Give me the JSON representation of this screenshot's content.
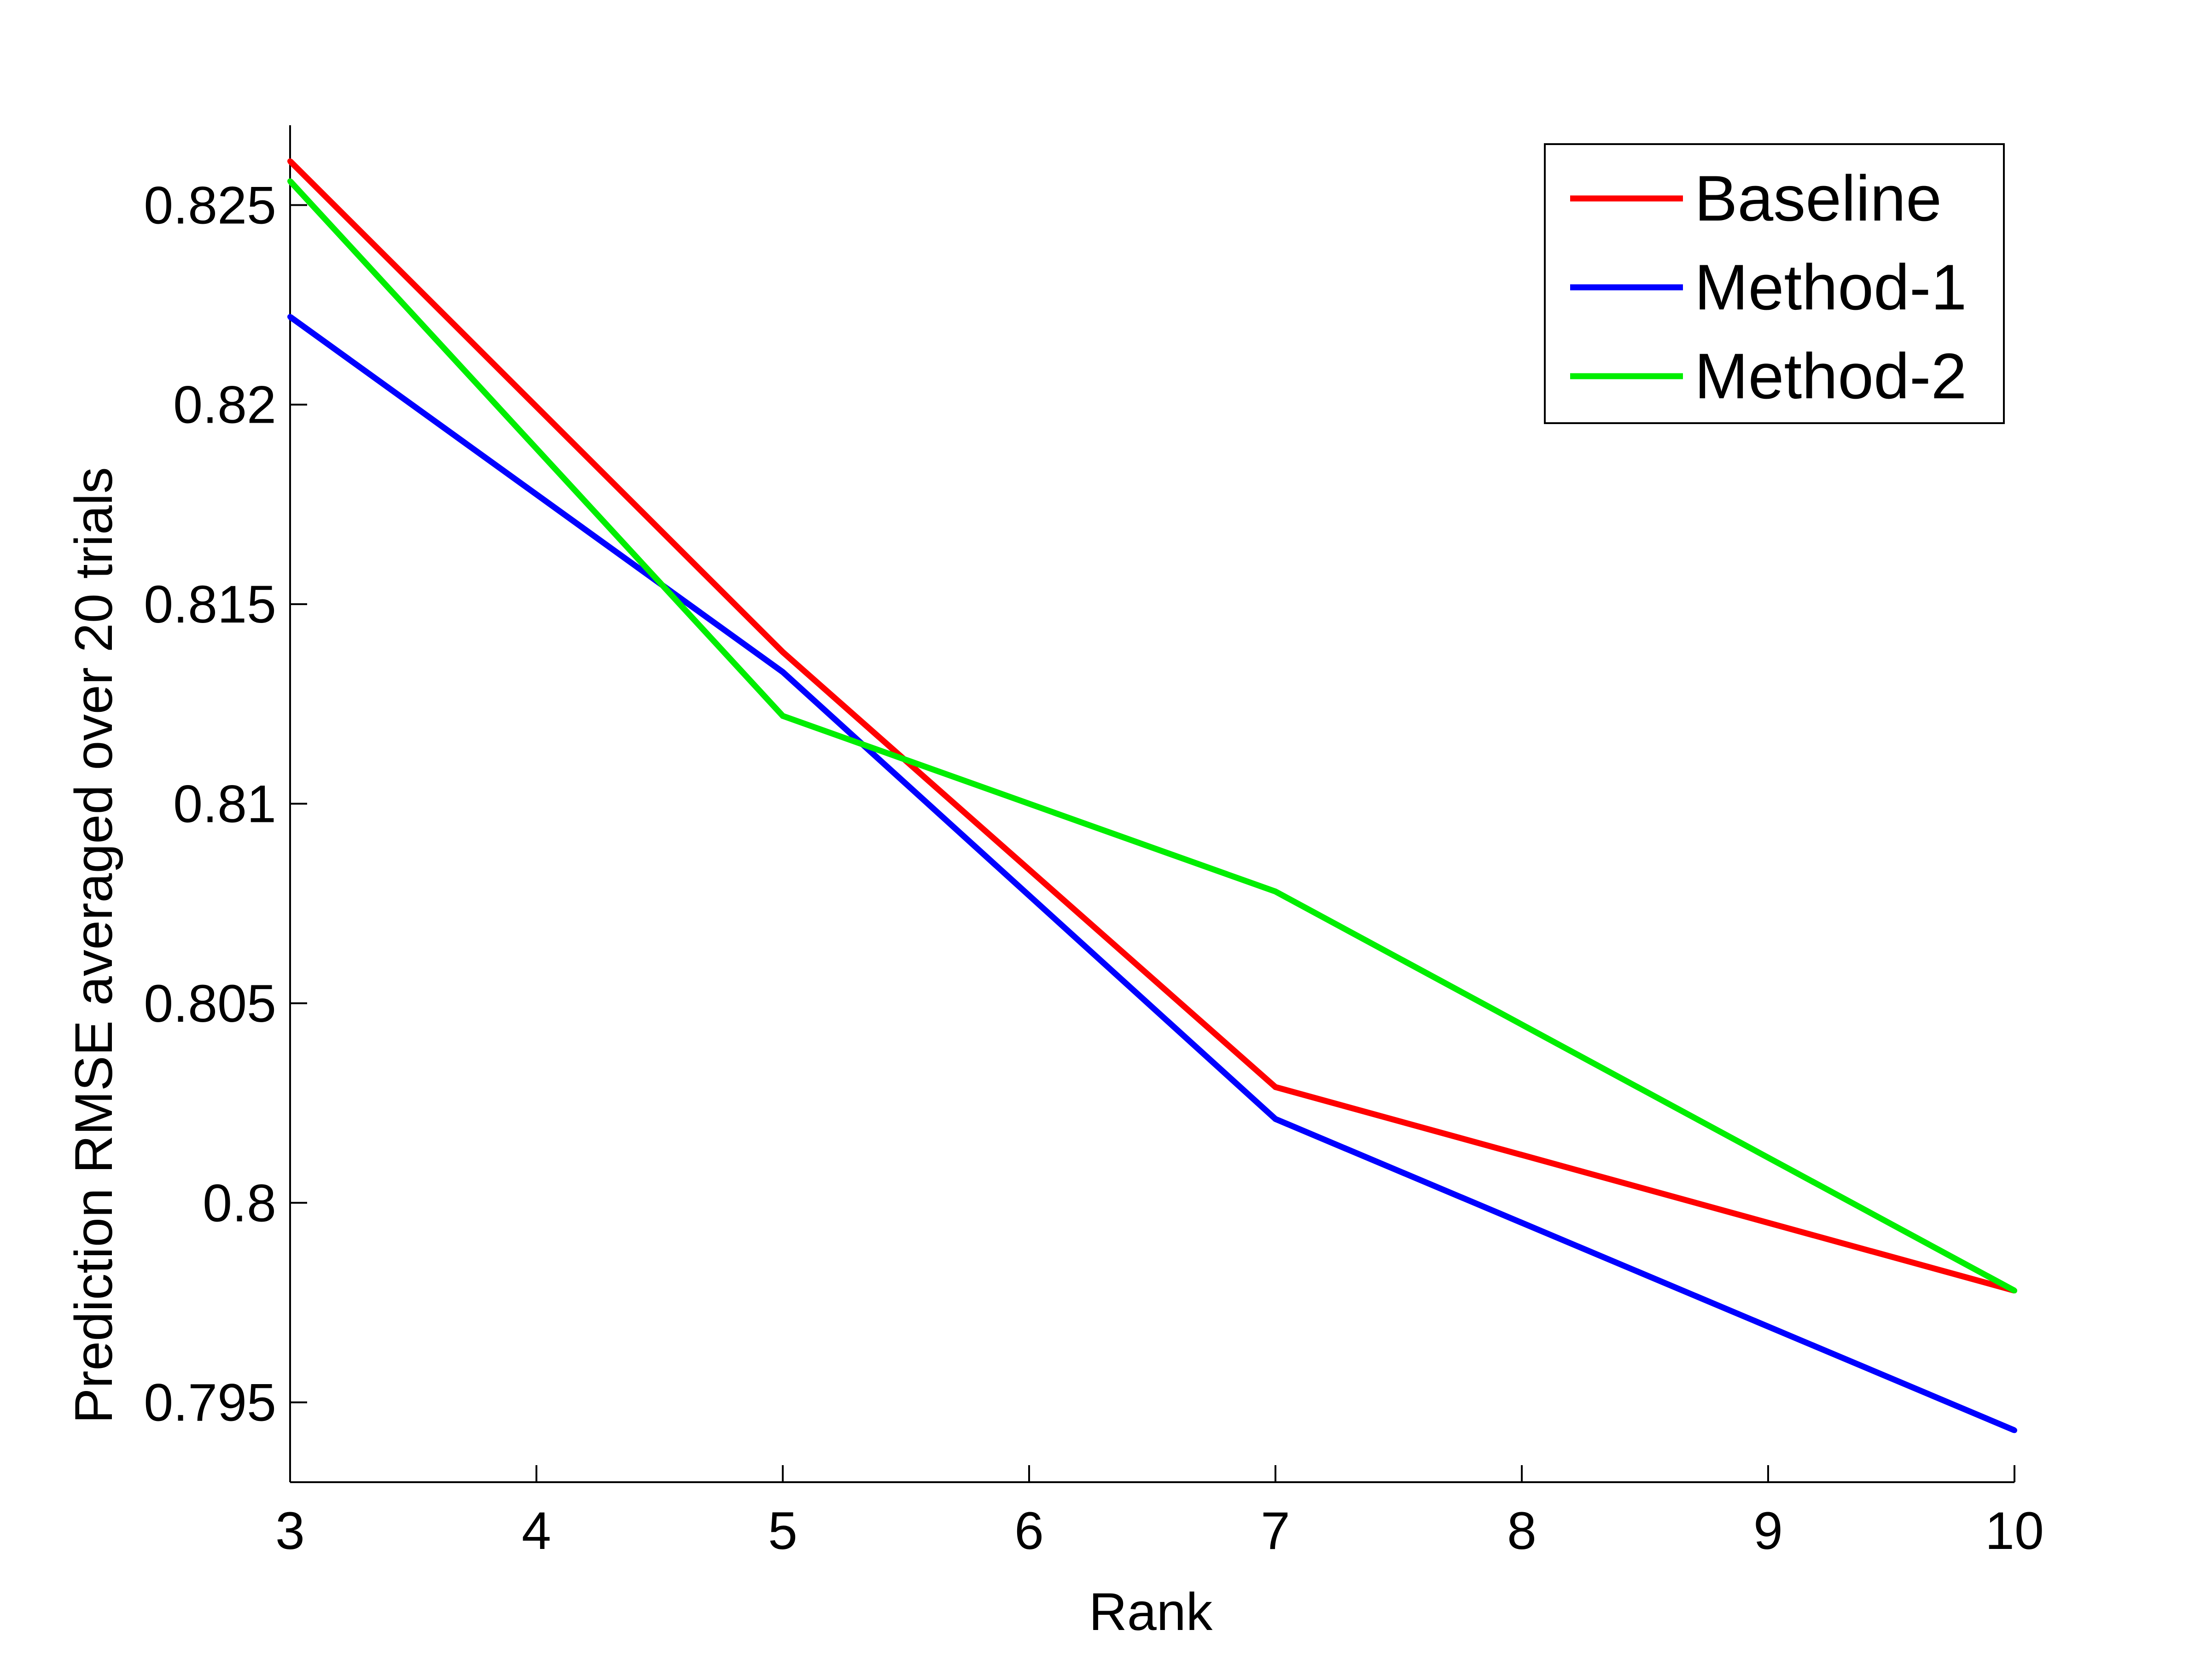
{
  "chart_data": {
    "type": "line",
    "x": [
      3,
      5,
      7,
      10
    ],
    "series": [
      {
        "name": "Baseline",
        "color": "#ff0000",
        "values": [
          0.8261,
          0.8138,
          0.8029,
          0.7978
        ]
      },
      {
        "name": "Method-1",
        "color": "#0000ff",
        "values": [
          0.8222,
          0.8133,
          0.8021,
          0.7943
        ]
      },
      {
        "name": "Method-2",
        "color": "#00ee00",
        "values": [
          0.8256,
          0.8122,
          0.8078,
          0.7978
        ]
      }
    ],
    "xlabel": "Rank",
    "ylabel": "Prediction RMSE averaged over 20 trials",
    "xlim": [
      3,
      10
    ],
    "ylim": [
      0.793,
      0.827
    ],
    "xticks": [
      3,
      4,
      5,
      6,
      7,
      8,
      9,
      10
    ],
    "xtick_labels": [
      "3",
      "4",
      "5",
      "6",
      "7",
      "8",
      "9",
      "10"
    ],
    "yticks": [
      0.795,
      0.8,
      0.805,
      0.81,
      0.815,
      0.82,
      0.825
    ],
    "ytick_labels": [
      "0.795",
      "0.8",
      "0.805",
      "0.81",
      "0.815",
      "0.82",
      "0.825"
    ],
    "legend_position": "top-right",
    "grid": false
  }
}
